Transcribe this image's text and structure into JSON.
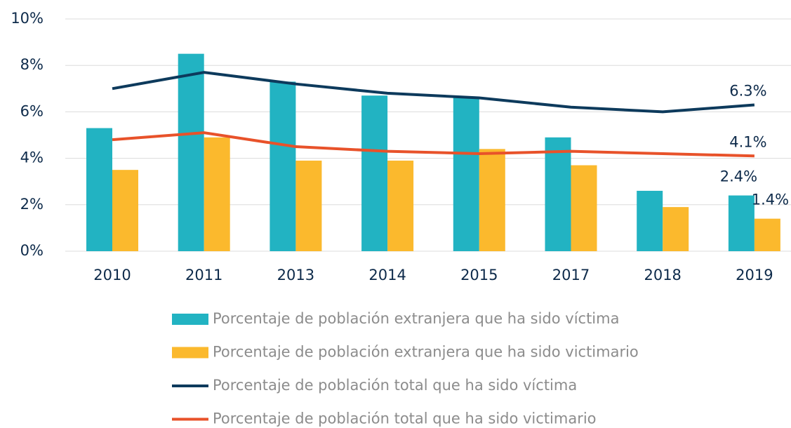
{
  "chart_data": {
    "type": "combo",
    "categories": [
      "2010",
      "2011",
      "2013",
      "2014",
      "2015",
      "2017",
      "2018",
      "2019"
    ],
    "series": [
      {
        "name": "Porcentaje de población extranjera que ha sido víctima",
        "type": "bar",
        "color": "#22b3c2",
        "values": [
          5.3,
          8.5,
          7.3,
          6.7,
          6.6,
          4.9,
          2.6,
          2.4
        ],
        "value_labels": [
          null,
          null,
          null,
          null,
          null,
          null,
          null,
          "2.4%"
        ]
      },
      {
        "name": "Porcentaje de población extranjera que ha sido victimario",
        "type": "bar",
        "color": "#fbb92d",
        "values": [
          3.5,
          4.9,
          3.9,
          3.9,
          4.4,
          3.7,
          1.9,
          1.4
        ],
        "value_labels": [
          null,
          null,
          null,
          null,
          null,
          null,
          null,
          "1.4%"
        ]
      },
      {
        "name": "Porcentaje de población total que ha sido víctima",
        "type": "line",
        "color": "#0d3a5c",
        "values": [
          7.0,
          7.7,
          7.2,
          6.8,
          6.6,
          6.2,
          6.0,
          6.3
        ],
        "value_labels": [
          null,
          null,
          null,
          null,
          null,
          null,
          null,
          "6.3%"
        ]
      },
      {
        "name": "Porcentaje de población total que ha sido victimario",
        "type": "line",
        "color": "#e8522a",
        "values": [
          4.8,
          5.1,
          4.5,
          4.3,
          4.2,
          4.3,
          4.2,
          4.1
        ],
        "value_labels": [
          null,
          null,
          null,
          null,
          null,
          null,
          null,
          "4.1%"
        ]
      }
    ],
    "ylim": [
      0,
      10
    ],
    "yticks": [
      {
        "value": 0,
        "label": "0%"
      },
      {
        "value": 2,
        "label": "2%"
      },
      {
        "value": 4,
        "label": "4%"
      },
      {
        "value": 6,
        "label": "6%"
      },
      {
        "value": 8,
        "label": "8%"
      },
      {
        "value": 10,
        "label": "10%"
      }
    ],
    "grid": true,
    "legend": "bottom"
  }
}
